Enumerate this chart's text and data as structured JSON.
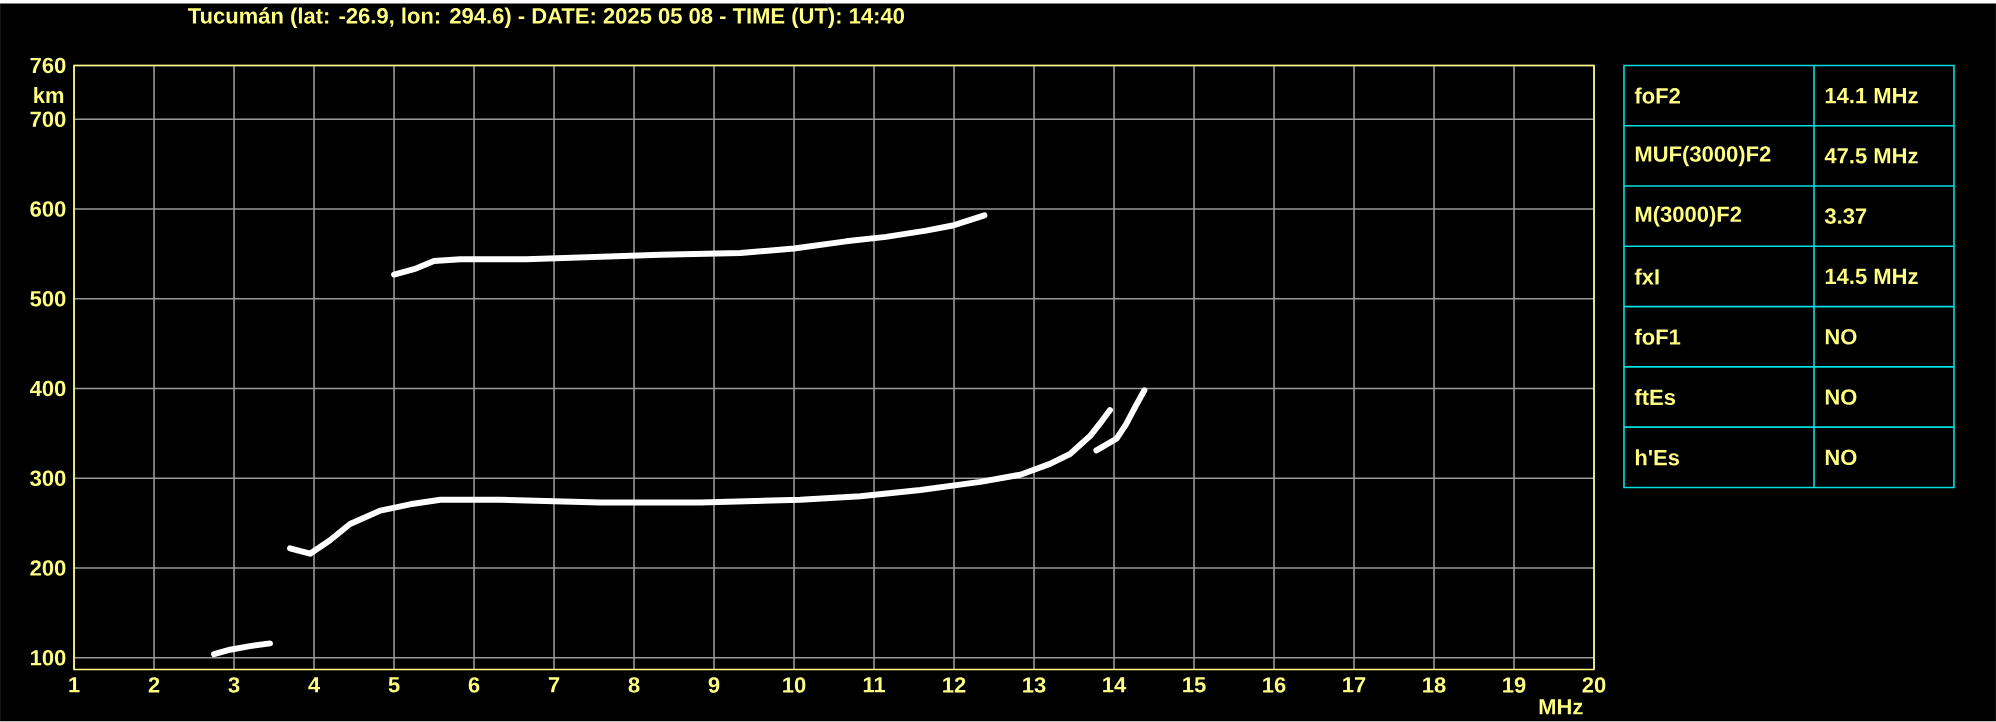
{
  "chart_data": {
    "type": "line",
    "title": "Tucumán (lat: -26.9, lon: 294.6) - DATE: 2025 05 08 - TIME (UT): 14:40",
    "xlabel": "MHz",
    "ylabel": "km",
    "xlim": [
      1,
      20
    ],
    "ylim": [
      87,
      760
    ],
    "xticks": [
      1,
      2,
      3,
      4,
      5,
      6,
      7,
      8,
      9,
      10,
      11,
      12,
      13,
      14,
      15,
      16,
      17,
      18,
      19,
      20
    ],
    "yticks": [
      100,
      200,
      300,
      400,
      500,
      600,
      700,
      760
    ],
    "grid": true,
    "series": [
      {
        "color": "#ffffff",
        "x": [
          3.7,
          3.95,
          4.2,
          4.45,
          4.83,
          5.2,
          5.58,
          6.33,
          7.58,
          8.83,
          10.08,
          10.83,
          11.58,
          12.33,
          12.83,
          13.2,
          13.45,
          13.7,
          13.85,
          13.95
        ],
        "values": [
          222,
          216,
          231,
          249,
          264,
          271,
          276,
          276,
          273,
          273,
          276,
          280,
          287,
          296,
          304,
          316,
          327,
          347,
          364,
          376
        ]
      },
      {
        "color": "#ffffff",
        "x": [
          13.78,
          14.03,
          14.15,
          14.28,
          14.38
        ],
        "values": [
          331,
          344,
          360,
          382,
          398
        ]
      },
      {
        "color": "#ffffff",
        "x": [
          2.75,
          2.95,
          3.2,
          3.45
        ],
        "values": [
          104,
          109,
          113,
          116
        ]
      },
      {
        "color": "#ffffff",
        "x": [
          5.0,
          5.25,
          5.5,
          5.83,
          6.65,
          8.33,
          9.33,
          10.0,
          10.65,
          11.15,
          11.65,
          12.0,
          12.38
        ],
        "values": [
          527,
          533,
          542,
          544,
          544,
          549,
          551,
          556,
          564,
          569,
          576,
          582,
          593
        ]
      }
    ],
    "annotations": [
      "foF2",
      "14.1 MHz",
      "MUF(3000)F2",
      "47.5 MHz",
      "M(3000)F2",
      "3.37",
      "fxI",
      "14.5 MHz",
      "foF1",
      "NO",
      "ftEs",
      "NO",
      "h'Es",
      "NO"
    ]
  }
}
